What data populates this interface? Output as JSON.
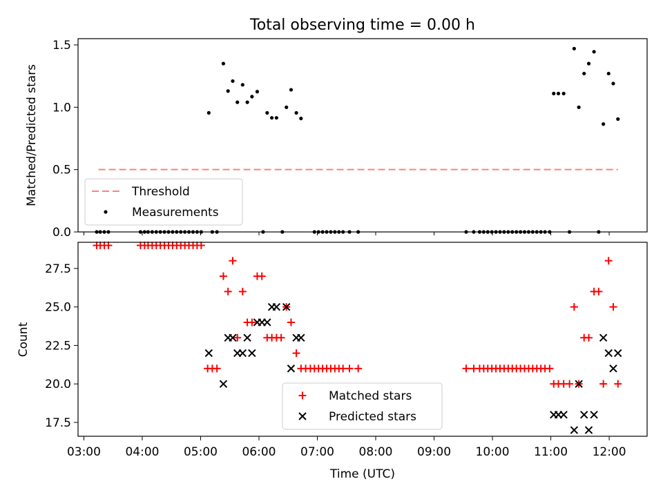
{
  "chart_data": [
    {
      "type": "scatter",
      "title": "Total observing time = 0.00 h",
      "ylabel": "Matched/Predicted stars",
      "xlabel": "",
      "xlim_hours": [
        2.9,
        12.65
      ],
      "ylim": [
        0,
        1.55
      ],
      "yticks": [
        0.0,
        0.5,
        1.0,
        1.5
      ],
      "yticklabels": [
        "0.0",
        "0.5",
        "1.0",
        "1.5"
      ],
      "grid": false,
      "legend_location": "lower-left",
      "series": [
        {
          "name": "Threshold",
          "kind": "dashed-line",
          "color": "#ff7f7f",
          "x_hours": [
            3.25,
            12.15
          ],
          "y": [
            0.5,
            0.5
          ]
        },
        {
          "name": "Measurements",
          "kind": "dot",
          "color": "#000000",
          "points": [
            [
              3.22,
              0
            ],
            [
              3.28,
              0
            ],
            [
              3.35,
              0
            ],
            [
              3.42,
              0
            ],
            [
              3.97,
              0
            ],
            [
              4.04,
              0
            ],
            [
              4.1,
              0
            ],
            [
              4.17,
              0
            ],
            [
              4.24,
              0
            ],
            [
              4.31,
              0
            ],
            [
              4.38,
              0
            ],
            [
              4.45,
              0
            ],
            [
              4.52,
              0
            ],
            [
              4.59,
              0
            ],
            [
              4.66,
              0
            ],
            [
              4.73,
              0
            ],
            [
              4.8,
              0
            ],
            [
              4.87,
              0
            ],
            [
              4.94,
              0
            ],
            [
              5.01,
              0
            ],
            [
              5.2,
              0
            ],
            [
              5.28,
              0
            ],
            [
              6.07,
              0
            ],
            [
              6.4,
              0
            ],
            [
              6.95,
              0
            ],
            [
              7.02,
              0
            ],
            [
              7.09,
              0
            ],
            [
              7.16,
              0
            ],
            [
              7.23,
              0
            ],
            [
              7.3,
              0
            ],
            [
              7.37,
              0
            ],
            [
              7.44,
              0
            ],
            [
              7.55,
              0
            ],
            [
              7.7,
              0
            ],
            [
              9.55,
              0
            ],
            [
              9.68,
              0
            ],
            [
              9.78,
              0
            ],
            [
              9.85,
              0
            ],
            [
              9.92,
              0
            ],
            [
              9.99,
              0
            ],
            [
              10.06,
              0
            ],
            [
              10.13,
              0
            ],
            [
              10.2,
              0
            ],
            [
              10.27,
              0
            ],
            [
              10.34,
              0
            ],
            [
              10.41,
              0
            ],
            [
              10.48,
              0
            ],
            [
              10.55,
              0
            ],
            [
              10.62,
              0
            ],
            [
              10.69,
              0
            ],
            [
              10.76,
              0
            ],
            [
              10.83,
              0
            ],
            [
              10.9,
              0
            ],
            [
              10.98,
              0
            ],
            [
              11.32,
              0
            ],
            [
              11.82,
              0
            ],
            [
              5.14,
              0.955
            ],
            [
              5.39,
              1.35
            ],
            [
              5.47,
              1.13
            ],
            [
              5.55,
              1.21
            ],
            [
              5.63,
              1.04
            ],
            [
              5.72,
              1.18
            ],
            [
              5.8,
              1.04
            ],
            [
              5.88,
              1.085
            ],
            [
              5.97,
              1.125
            ],
            [
              6.14,
              0.955
            ],
            [
              6.22,
              0.915
            ],
            [
              6.3,
              0.915
            ],
            [
              6.47,
              1.0
            ],
            [
              6.55,
              1.14
            ],
            [
              6.64,
              0.955
            ],
            [
              6.72,
              0.91
            ],
            [
              11.05,
              1.11
            ],
            [
              11.13,
              1.11
            ],
            [
              11.22,
              1.11
            ],
            [
              11.4,
              1.47
            ],
            [
              11.48,
              1.0
            ],
            [
              11.57,
              1.27
            ],
            [
              11.65,
              1.35
            ],
            [
              11.74,
              1.445
            ],
            [
              11.9,
              0.865
            ],
            [
              11.99,
              1.27
            ],
            [
              12.07,
              1.19
            ],
            [
              12.15,
              0.905
            ]
          ]
        }
      ],
      "legend": [
        "Threshold",
        "Measurements"
      ]
    },
    {
      "type": "scatter",
      "title": "",
      "xlabel": "Time (UTC)",
      "ylabel": "Count",
      "xlim_hours": [
        2.9,
        12.65
      ],
      "ylim": [
        16.6,
        29.2
      ],
      "xticks_hours": [
        3,
        4,
        5,
        6,
        7,
        8,
        9,
        10,
        11,
        12
      ],
      "xticklabels": [
        "03:00",
        "04:00",
        "05:00",
        "06:00",
        "07:00",
        "08:00",
        "09:00",
        "10:00",
        "11:00",
        "12:00"
      ],
      "yticks": [
        17.5,
        20.0,
        22.5,
        25.0,
        27.5
      ],
      "yticklabels": [
        "17.5",
        "20.0",
        "22.5",
        "25.0",
        "27.5"
      ],
      "grid": false,
      "legend_location": "lower-center",
      "series": [
        {
          "name": "Matched stars",
          "marker": "+",
          "color": "#ff0000",
          "points": [
            [
              3.22,
              29
            ],
            [
              3.28,
              29
            ],
            [
              3.35,
              29
            ],
            [
              3.42,
              29
            ],
            [
              3.97,
              29
            ],
            [
              4.04,
              29
            ],
            [
              4.1,
              29
            ],
            [
              4.17,
              29
            ],
            [
              4.24,
              29
            ],
            [
              4.31,
              29
            ],
            [
              4.38,
              29
            ],
            [
              4.45,
              29
            ],
            [
              4.52,
              29
            ],
            [
              4.59,
              29
            ],
            [
              4.66,
              29
            ],
            [
              4.73,
              29
            ],
            [
              4.8,
              29
            ],
            [
              4.87,
              29
            ],
            [
              4.94,
              29
            ],
            [
              5.01,
              29
            ],
            [
              5.12,
              21
            ],
            [
              5.2,
              21
            ],
            [
              5.28,
              21
            ],
            [
              5.39,
              27
            ],
            [
              5.47,
              26
            ],
            [
              5.55,
              28
            ],
            [
              5.63,
              23
            ],
            [
              5.72,
              26
            ],
            [
              5.8,
              24
            ],
            [
              5.88,
              24
            ],
            [
              5.97,
              27
            ],
            [
              6.05,
              27
            ],
            [
              6.14,
              23
            ],
            [
              6.22,
              23
            ],
            [
              6.3,
              23
            ],
            [
              6.38,
              23
            ],
            [
              6.47,
              25
            ],
            [
              6.55,
              24
            ],
            [
              6.64,
              22
            ],
            [
              6.72,
              21
            ],
            [
              6.8,
              21
            ],
            [
              6.88,
              21
            ],
            [
              6.95,
              21
            ],
            [
              7.02,
              21
            ],
            [
              7.09,
              21
            ],
            [
              7.16,
              21
            ],
            [
              7.23,
              21
            ],
            [
              7.3,
              21
            ],
            [
              7.37,
              21
            ],
            [
              7.44,
              21
            ],
            [
              7.55,
              21
            ],
            [
              7.7,
              21
            ],
            [
              9.55,
              21
            ],
            [
              9.68,
              21
            ],
            [
              9.78,
              21
            ],
            [
              9.85,
              21
            ],
            [
              9.92,
              21
            ],
            [
              9.99,
              21
            ],
            [
              10.06,
              21
            ],
            [
              10.13,
              21
            ],
            [
              10.2,
              21
            ],
            [
              10.27,
              21
            ],
            [
              10.34,
              21
            ],
            [
              10.41,
              21
            ],
            [
              10.48,
              21
            ],
            [
              10.55,
              21
            ],
            [
              10.62,
              21
            ],
            [
              10.69,
              21
            ],
            [
              10.76,
              21
            ],
            [
              10.83,
              21
            ],
            [
              10.9,
              21
            ],
            [
              10.98,
              21
            ],
            [
              11.05,
              20
            ],
            [
              11.13,
              20
            ],
            [
              11.22,
              20
            ],
            [
              11.32,
              20
            ],
            [
              11.4,
              25
            ],
            [
              11.48,
              20
            ],
            [
              11.57,
              23
            ],
            [
              11.65,
              23
            ],
            [
              11.74,
              26
            ],
            [
              11.82,
              26
            ],
            [
              11.9,
              20
            ],
            [
              11.99,
              28
            ],
            [
              12.07,
              25
            ],
            [
              12.15,
              20
            ]
          ]
        },
        {
          "name": "Predicted stars",
          "marker": "x",
          "color": "#000000",
          "points": [
            [
              5.14,
              22
            ],
            [
              5.39,
              20
            ],
            [
              5.47,
              23
            ],
            [
              5.55,
              23
            ],
            [
              5.63,
              22
            ],
            [
              5.72,
              22
            ],
            [
              5.8,
              23
            ],
            [
              5.88,
              22
            ],
            [
              5.97,
              24
            ],
            [
              6.05,
              24
            ],
            [
              6.14,
              24
            ],
            [
              6.22,
              25
            ],
            [
              6.3,
              25
            ],
            [
              6.47,
              25
            ],
            [
              6.55,
              21
            ],
            [
              6.64,
              23
            ],
            [
              6.72,
              23
            ],
            [
              11.05,
              18
            ],
            [
              11.13,
              18
            ],
            [
              11.22,
              18
            ],
            [
              11.4,
              17
            ],
            [
              11.48,
              20
            ],
            [
              11.57,
              18
            ],
            [
              11.65,
              17
            ],
            [
              11.74,
              18
            ],
            [
              11.9,
              23
            ],
            [
              11.99,
              22
            ],
            [
              12.07,
              21
            ],
            [
              12.15,
              22
            ]
          ]
        }
      ],
      "legend": [
        "Matched stars",
        "Predicted stars"
      ]
    }
  ]
}
